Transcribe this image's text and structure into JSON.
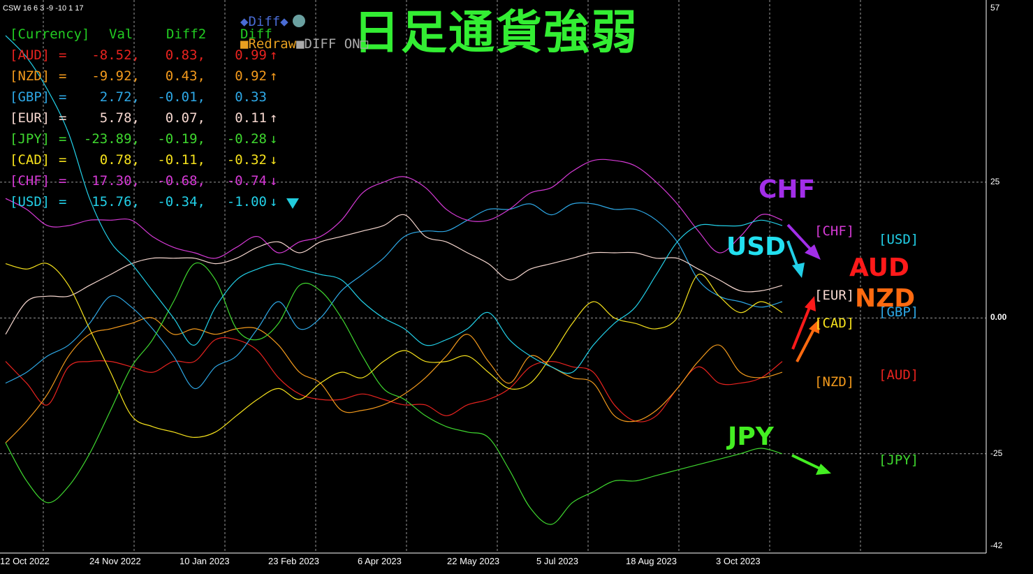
{
  "indicator_name": "CSW 16 6 3 -9 -10 1 17",
  "title": "日足通貨強弱",
  "table": {
    "header": {
      "currency": "[Currency]",
      "val": "Val",
      "diff2": "Diff2",
      "diff": "Diff"
    },
    "rows": [
      {
        "ccy": "[AUD]",
        "eq": "=",
        "val": "-8.52,",
        "diff2": "0.83,",
        "diff": "0.99",
        "arrow": "↑",
        "color": "#e8231f"
      },
      {
        "ccy": "[NZD]",
        "eq": "=",
        "val": "-9.92,",
        "diff2": "0.43,",
        "diff": "0.92",
        "arrow": "↑",
        "color": "#f39a1c"
      },
      {
        "ccy": "[GBP]",
        "eq": "=",
        "val": "2.72,",
        "diff2": "-0.01,",
        "diff": "0.33",
        "arrow": "",
        "color": "#2ea8e6"
      },
      {
        "ccy": "[EUR]",
        "eq": "=",
        "val": "5.78,",
        "diff2": "0.07,",
        "diff": "0.11",
        "arrow": "↑",
        "color": "#f7d8d0"
      },
      {
        "ccy": "[JPY]",
        "eq": "=",
        "val": "-23.89,",
        "diff2": "-0.19,",
        "diff": "-0.28",
        "arrow": "↓",
        "color": "#3fd82f"
      },
      {
        "ccy": "[CAD]",
        "eq": "=",
        "val": "0.78,",
        "diff2": "-0.11,",
        "diff": "-0.32",
        "arrow": "↓",
        "color": "#f6e21c"
      },
      {
        "ccy": "[CHF]",
        "eq": "=",
        "val": "17.30,",
        "diff2": "-0.68,",
        "diff": "-0.74",
        "arrow": "↓",
        "color": "#d63ad6"
      },
      {
        "ccy": "[USD]",
        "eq": "=",
        "val": "15.76,",
        "diff2": "-0.34,",
        "diff": "-1.00",
        "arrow": "↓",
        "color": "#22d0e8"
      }
    ]
  },
  "controls": {
    "diff_button": "◆Diff◆",
    "redraw_button": "■Redraw",
    "diff_onoff_label": "■DIFF ON□"
  },
  "annotations": {
    "chf": "CHF",
    "usd": "USD",
    "aud": "AUD",
    "nzd": "NZD",
    "jpy": "JPY"
  },
  "end_labels": {
    "chf": "[CHF]",
    "usd": "[USD]",
    "eur": "[EUR]",
    "gbp": "[GBP]",
    "cad": "[CAD]",
    "nzd": "[NZD]",
    "aud": "[AUD]",
    "jpy": "[JPY]"
  },
  "chart_data": {
    "type": "line",
    "y_ticks": [
      "57",
      "25",
      "0.00",
      "-25",
      "-42"
    ],
    "ylim": [
      -42,
      57
    ],
    "x_ticks": [
      "12 Oct 2022",
      "24 Nov 2022",
      "10 Jan 2023",
      "23 Feb 2023",
      "6 Apr 2023",
      "22 May 2023",
      "5 Jul 2023",
      "18 Aug 2023",
      "3 Oct 2023"
    ],
    "grid": true,
    "series": [
      {
        "name": "AUD",
        "color": "#e8231f",
        "values": [
          -8,
          -12,
          -16,
          -9,
          -8,
          -8,
          -9,
          -10,
          -8,
          -8,
          -4,
          -4,
          -6,
          -11,
          -14,
          -15,
          -15,
          -14,
          -15,
          -16,
          -16,
          -18,
          -16,
          -15,
          -13,
          -9,
          -8,
          -9,
          -10,
          -16,
          -19,
          -18,
          -13,
          -9,
          -12,
          -12,
          -11,
          -8
        ]
      },
      {
        "name": "NZD",
        "color": "#f39a1c",
        "values": [
          -23,
          -19,
          -14,
          -7,
          -3,
          -2,
          -1,
          0,
          -3,
          -2,
          -3,
          -2,
          -2,
          -5,
          -10,
          -12,
          -17,
          -17,
          -16,
          -14,
          -11,
          -7,
          -3,
          -8,
          -12,
          -7,
          -9,
          -11,
          -12,
          -18,
          -19,
          -17,
          -13,
          -8,
          -5,
          -10,
          -11,
          -10
        ]
      },
      {
        "name": "GBP",
        "color": "#2ea8e6",
        "values": [
          -12,
          -10,
          -7,
          -5,
          -1,
          4,
          2,
          -2,
          -7,
          -13,
          -9,
          -7,
          -2,
          3,
          -2,
          0,
          5,
          8,
          11,
          15,
          16,
          16,
          18,
          20,
          20,
          21,
          19,
          21,
          21,
          20,
          20,
          18,
          14,
          7,
          4,
          3,
          2,
          3
        ]
      },
      {
        "name": "EUR",
        "color": "#f7d8d0",
        "values": [
          -3,
          3,
          4,
          4,
          6,
          8,
          10,
          11,
          11,
          11,
          10,
          11,
          13,
          14,
          12,
          14,
          15,
          16,
          17,
          19,
          15,
          14,
          12,
          10,
          7,
          9,
          10,
          11,
          12,
          12,
          12,
          11,
          11,
          9,
          7,
          5,
          5,
          6
        ]
      },
      {
        "name": "JPY",
        "color": "#3fd82f",
        "values": [
          -23,
          -30,
          -34,
          -31,
          -25,
          -17,
          -9,
          -4,
          3,
          10,
          7,
          -2,
          -4,
          -1,
          6,
          5,
          0,
          -7,
          -13,
          -15,
          -18,
          -20,
          -21,
          -22,
          -28,
          -35,
          -38,
          -34,
          -32,
          -30,
          -30,
          -29,
          -28,
          -27,
          -26,
          -25,
          -24,
          -25
        ]
      },
      {
        "name": "CAD",
        "color": "#f6e21c",
        "values": [
          10,
          9,
          10,
          6,
          -2,
          -10,
          -18,
          -20,
          -21,
          -22,
          -21,
          -18,
          -15,
          -13,
          -15,
          -12,
          -10,
          -11,
          -8,
          -6,
          -8,
          -8,
          -7,
          -10,
          -13,
          -12,
          -7,
          -1,
          3,
          0,
          -1,
          -2,
          0,
          8,
          4,
          1,
          3,
          1
        ]
      },
      {
        "name": "CHF",
        "color": "#d63ad6",
        "values": [
          22,
          20,
          17,
          17,
          18,
          18,
          18,
          15,
          13,
          12,
          11,
          13,
          15,
          12,
          14,
          15,
          18,
          23,
          25,
          26,
          24,
          20,
          18,
          18,
          20,
          23,
          24,
          27,
          29,
          29,
          28,
          25,
          21,
          16,
          12,
          15,
          19,
          18
        ]
      },
      {
        "name": "USD",
        "color": "#22d0e8",
        "values": [
          52,
          48,
          42,
          34,
          22,
          14,
          10,
          5,
          0,
          -5,
          2,
          7,
          9,
          10,
          9,
          8,
          7,
          3,
          0,
          -2,
          -5,
          -4,
          -2,
          1,
          -4,
          -7,
          -9,
          -10,
          -5,
          -1,
          2,
          8,
          14,
          17,
          17,
          17,
          18,
          17
        ]
      }
    ]
  }
}
